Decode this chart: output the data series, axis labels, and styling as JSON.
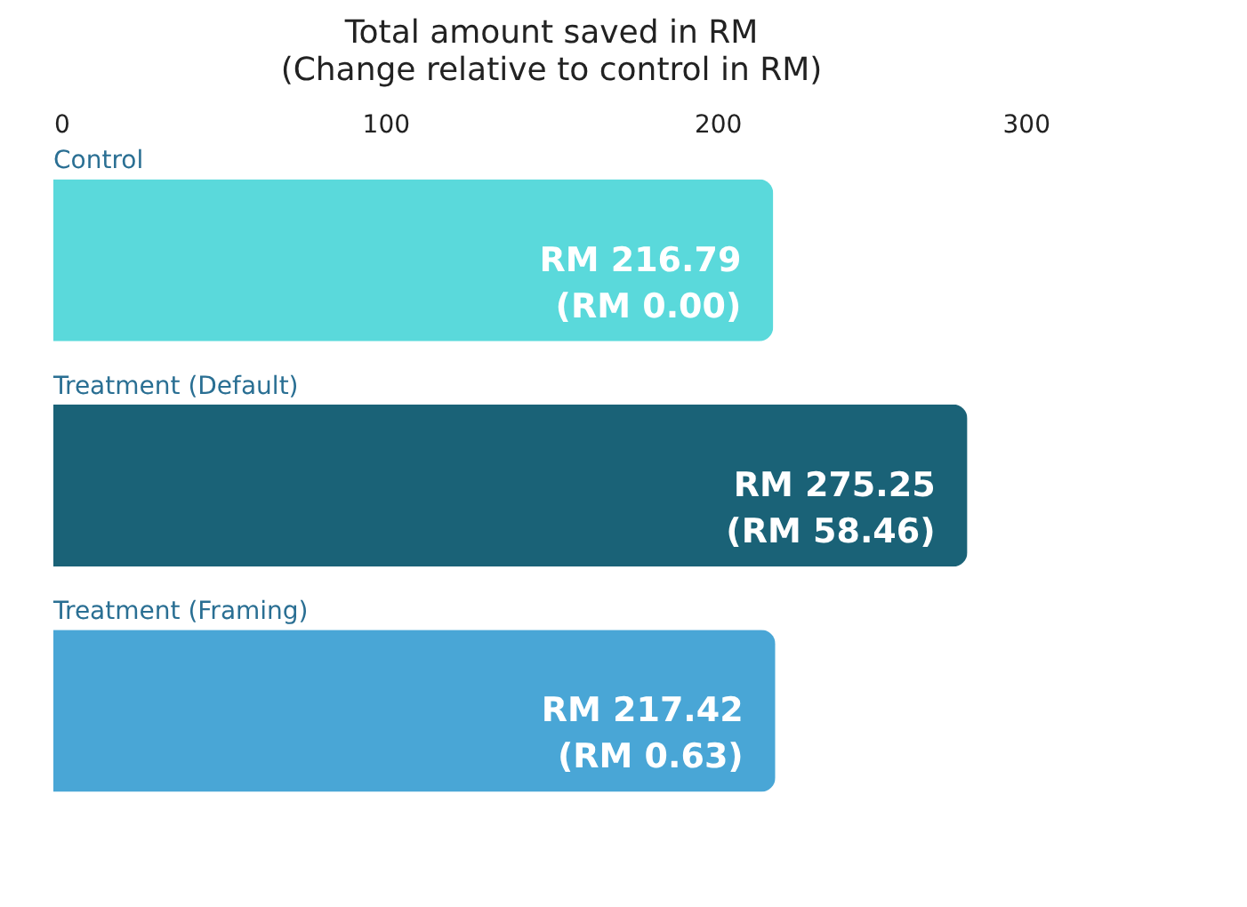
{
  "chart_data": {
    "type": "bar",
    "orientation": "horizontal",
    "title": "Total amount saved in RM",
    "subtitle": "(Change relative to control in RM)",
    "categories": [
      "Control",
      "Treatment (Default)",
      "Treatment (Framing)"
    ],
    "values": [
      216.79,
      275.25,
      217.42
    ],
    "colors": [
      "#5ad9db",
      "#1a6277",
      "#49a6d6"
    ],
    "value_labels": [
      "RM 216.79\n(RM 0.00)",
      "RM 275.25\n(RM 58.46)",
      "RM 217.42\n(RM 0.63)"
    ],
    "xlim": [
      0,
      300
    ],
    "xticks": [
      0,
      100,
      200,
      300
    ],
    "grid": false,
    "legend": false
  }
}
